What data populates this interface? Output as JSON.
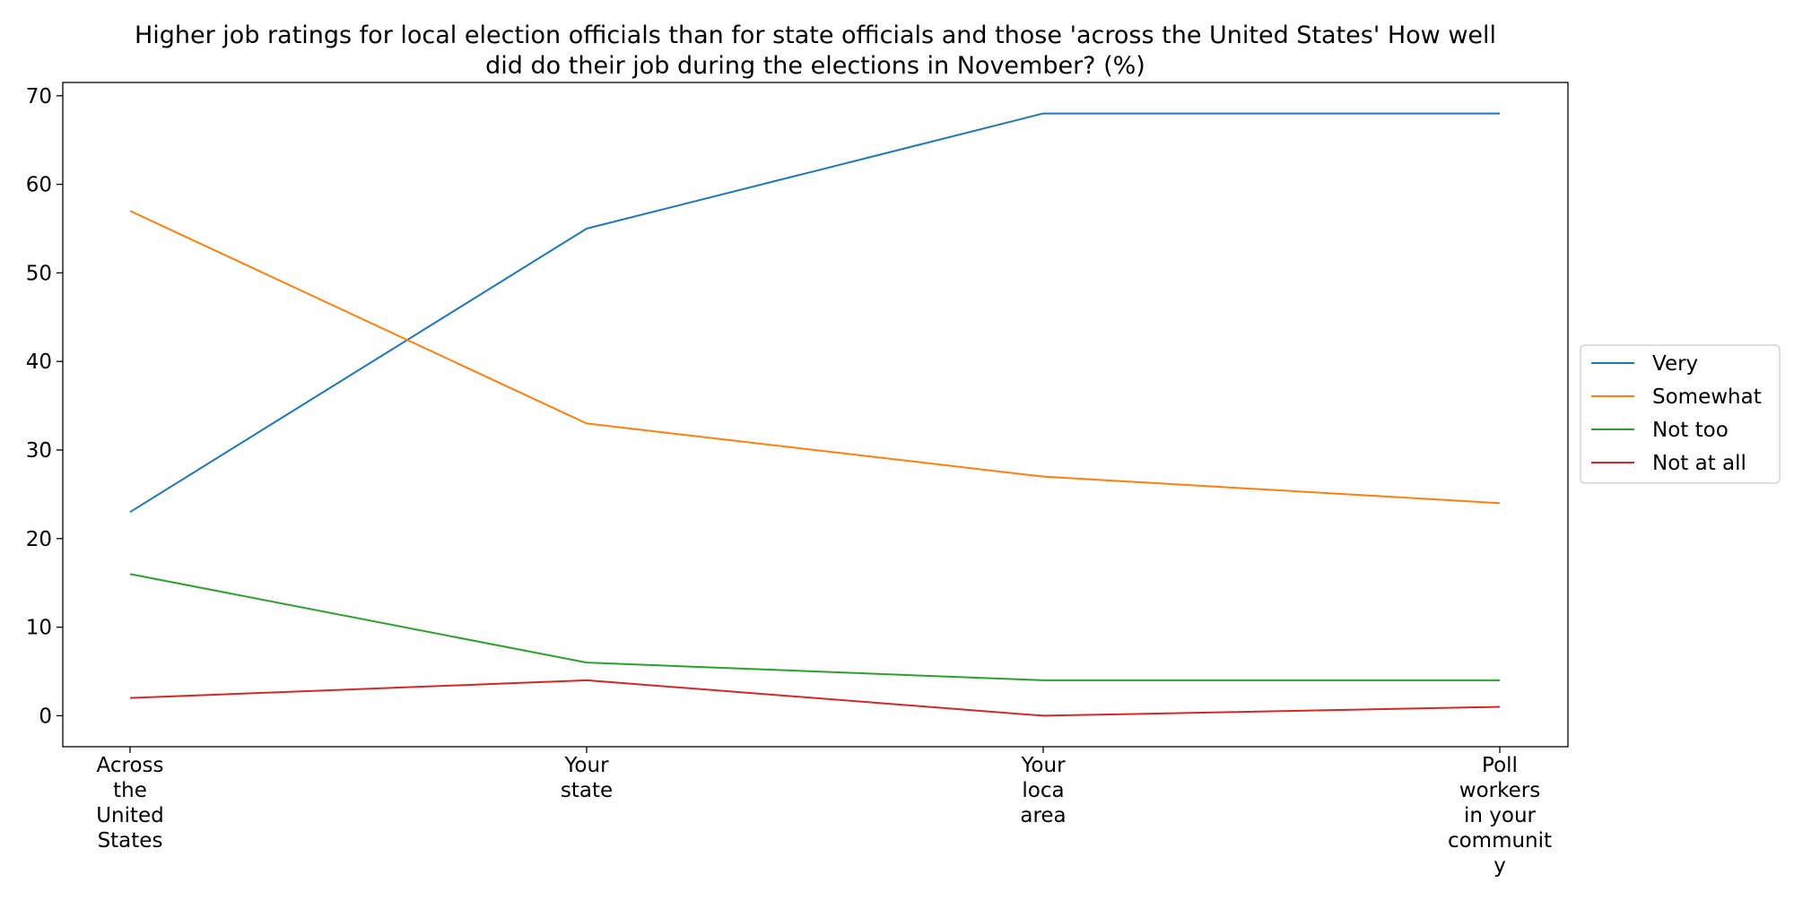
{
  "chart_data": {
    "type": "line",
    "title_lines": [
      "Higher job ratings for local election officials than for state officials and those 'across the United States' How well",
      "did do their job during the elections in November? (%)"
    ],
    "xlabel": "",
    "ylabel": "",
    "categories": [
      [
        "Across",
        "the",
        "United",
        "States"
      ],
      [
        "Your",
        "state"
      ],
      [
        "Your",
        "loca",
        "area"
      ],
      [
        "Poll",
        "workers",
        "in your",
        "communit",
        "y"
      ]
    ],
    "ylim": [
      -3.5,
      71.5
    ],
    "yticks": [
      0,
      10,
      20,
      30,
      40,
      50,
      60,
      70
    ],
    "grid": false,
    "legend_position": "center-right-outside",
    "series": [
      {
        "name": "Very",
        "color": "#1f77b4",
        "values": [
          23,
          55,
          68,
          68
        ]
      },
      {
        "name": "Somewhat",
        "color": "#ff7f0e",
        "values": [
          57,
          33,
          27,
          24
        ]
      },
      {
        "name": "Not too",
        "color": "#2ca02c",
        "values": [
          16,
          6,
          4,
          4
        ]
      },
      {
        "name": "Not at all",
        "color": "#d62728",
        "values": [
          2,
          4,
          0,
          1
        ]
      }
    ]
  }
}
